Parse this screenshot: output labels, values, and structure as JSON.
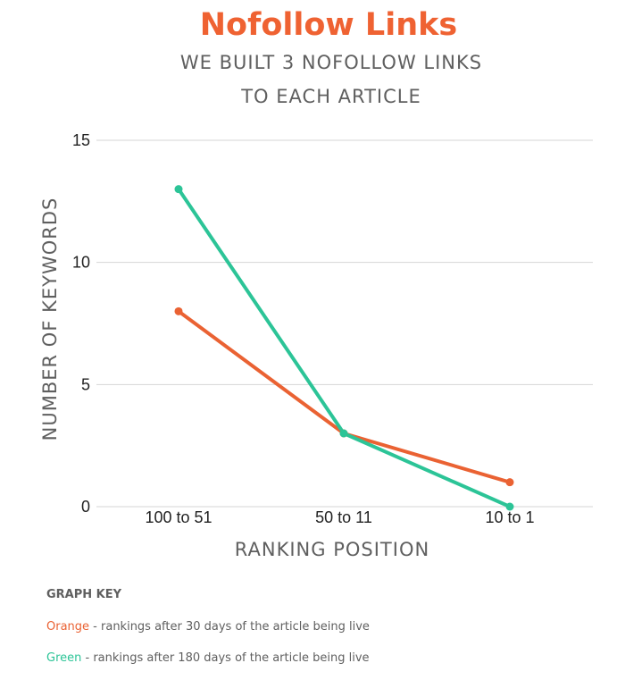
{
  "chart_data": {
    "type": "line",
    "title": "Nofollow Links",
    "subtitle_lines": [
      "WE BUILT 3 NOFOLLOW LINKS",
      "TO EACH ARTICLE"
    ],
    "xlabel": "RANKING POSITION",
    "ylabel": "NUMBER OF KEYWORDS",
    "categories": [
      "100 to 51",
      "50 to 11",
      "10 to 1"
    ],
    "ylim": [
      0,
      15
    ],
    "yticks": [
      "0",
      "5",
      "10",
      "15"
    ],
    "ytick_values": [
      0,
      5,
      10,
      15
    ],
    "grid": true,
    "series": [
      {
        "name": "Orange",
        "color": "#ea6233",
        "values": [
          8,
          3,
          1
        ]
      },
      {
        "name": "Green",
        "color": "#2cc497",
        "values": [
          13,
          3,
          0
        ]
      }
    ]
  },
  "key": {
    "title": "GRAPH KEY",
    "items": [
      {
        "color_name": "Orange",
        "color": "#ea6233",
        "text": " - rankings after 30 days of the article being live"
      },
      {
        "color_name": "Green",
        "color": "#2cc497",
        "text": " - rankings after 180 days of the article being live"
      }
    ]
  }
}
